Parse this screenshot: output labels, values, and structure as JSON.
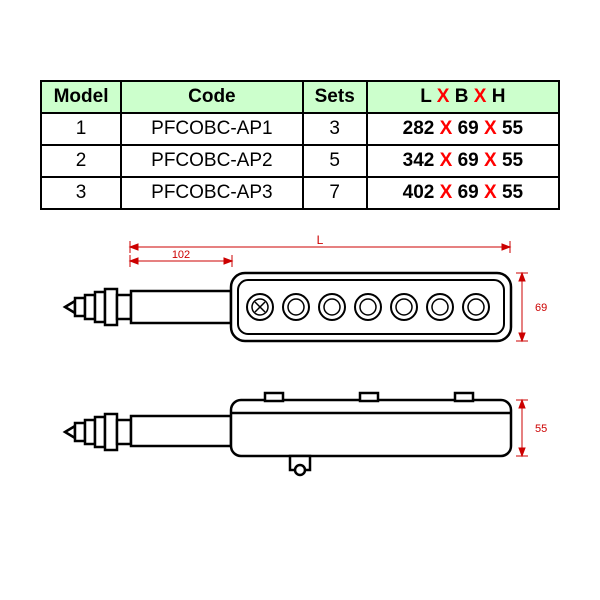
{
  "table": {
    "headers": [
      "Model",
      "Code",
      "Sets"
    ],
    "dim_header_L": "L",
    "dim_header_B": "B",
    "dim_header_H": "H",
    "dim_header_sep": "X",
    "rows": [
      {
        "model": "1",
        "code": "PFCOBC-AP1",
        "sets": "3",
        "L": "282",
        "B": "69",
        "H": "55"
      },
      {
        "model": "2",
        "code": "PFCOBC-AP2",
        "sets": "5",
        "L": "342",
        "B": "69",
        "H": "55"
      },
      {
        "model": "3",
        "code": "PFCOBC-AP3",
        "sets": "7",
        "L": "402",
        "B": "69",
        "H": "55"
      }
    ],
    "sep": "X",
    "header_bg": "#ccffcc",
    "border_color": "#000000",
    "x_color": "#ff0000",
    "fontsize": 19
  },
  "drawing": {
    "dim_102": "102",
    "dim_L": "L",
    "dim_69": "69",
    "dim_55": "55",
    "stroke": "#000000",
    "dim_stroke": "#cc0000",
    "button_count": 7
  }
}
